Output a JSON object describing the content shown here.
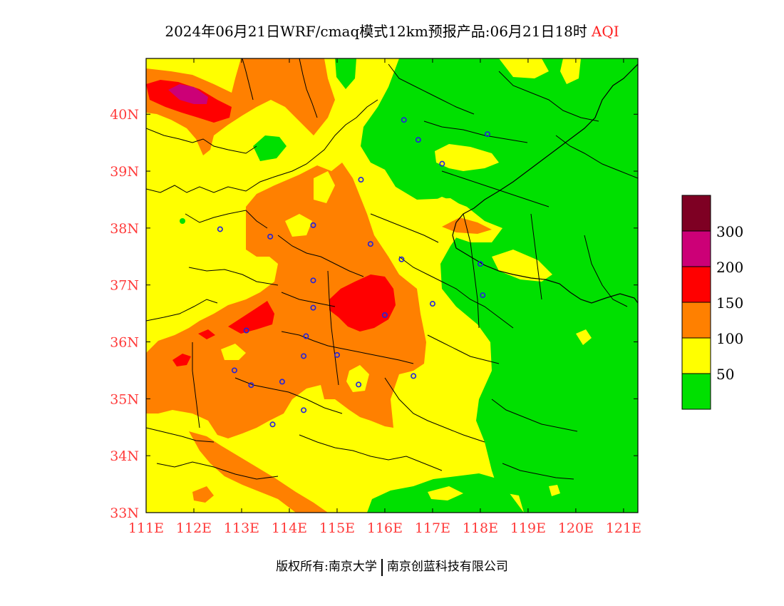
{
  "header": {
    "title": "2024年06月21日WRF/cmaq模式12km预报产品:06月21日18时",
    "variable": "AQI"
  },
  "footer": {
    "copyright_label": "版权所有:",
    "org1": "南京大学",
    "org2": "南京创蓝科技有限公司"
  },
  "map": {
    "axes_color": "#ff3b3b",
    "lon_labels": [
      "111E",
      "112E",
      "113E",
      "114E",
      "115E",
      "116E",
      "117E",
      "118E",
      "119E",
      "120E",
      "121E"
    ],
    "lat_labels": [
      "40N",
      "39N",
      "38N",
      "37N",
      "36N",
      "35N",
      "34N",
      "33N"
    ],
    "lon_range": [
      111,
      121.3
    ],
    "lat_range": [
      33,
      40.98
    ],
    "stations": [
      [
        116.4,
        39.9
      ],
      [
        116.7,
        39.55
      ],
      [
        117.2,
        39.13
      ],
      [
        118.15,
        39.65
      ],
      [
        115.5,
        38.85
      ],
      [
        112.55,
        37.98
      ],
      [
        113.6,
        37.85
      ],
      [
        114.5,
        38.05
      ],
      [
        115.7,
        37.72
      ],
      [
        116.35,
        37.45
      ],
      [
        114.5,
        37.08
      ],
      [
        114.5,
        36.6
      ],
      [
        116.0,
        36.47
      ],
      [
        117.0,
        36.67
      ],
      [
        113.1,
        36.2
      ],
      [
        114.35,
        36.1
      ],
      [
        114.3,
        35.75
      ],
      [
        115.0,
        35.77
      ],
      [
        112.85,
        35.5
      ],
      [
        113.2,
        35.24
      ],
      [
        113.85,
        35.3
      ],
      [
        115.45,
        35.25
      ],
      [
        116.6,
        35.4
      ],
      [
        114.3,
        34.8
      ],
      [
        113.65,
        34.55
      ],
      [
        118.0,
        37.37
      ],
      [
        118.05,
        36.82
      ]
    ]
  },
  "legend": {
    "bins": [
      {
        "color": "#00e000",
        "label": "50"
      },
      {
        "color": "#ffff00",
        "label": "100"
      },
      {
        "color": "#ff8000",
        "label": "150"
      },
      {
        "color": "#ff0000",
        "label": "200"
      },
      {
        "color": "#cc0077",
        "label": "300"
      },
      {
        "color": "#7e0023",
        "label": ""
      }
    ]
  },
  "palette": {
    "good": "#00e000",
    "moderate": "#ffff00",
    "usg": "#ff8000",
    "unhealthy": "#ff0000",
    "very_unhealthy": "#cc0077",
    "hazardous": "#7e0023"
  }
}
